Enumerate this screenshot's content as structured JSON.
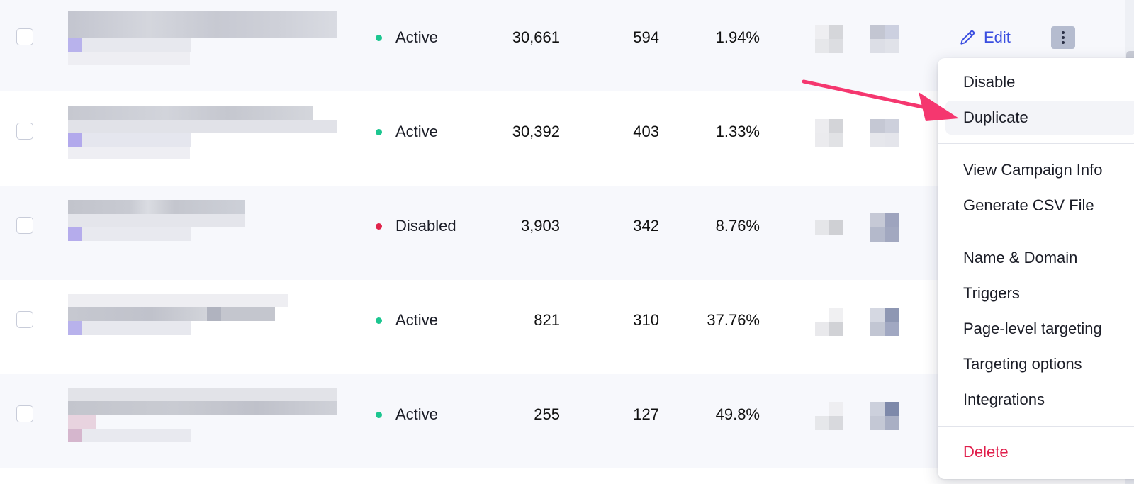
{
  "rows": [
    {
      "status": "Active",
      "status_color": "#1cc690",
      "impressions": "30,661",
      "conversions": "594",
      "rate": "1.94%"
    },
    {
      "status": "Active",
      "status_color": "#1cc690",
      "impressions": "30,392",
      "conversions": "403",
      "rate": "1.33%"
    },
    {
      "status": "Disabled",
      "status_color": "#e0244b",
      "impressions": "3,903",
      "conversions": "342",
      "rate": "8.76%"
    },
    {
      "status": "Active",
      "status_color": "#1cc690",
      "impressions": "821",
      "conversions": "310",
      "rate": "37.76%"
    },
    {
      "status": "Active",
      "status_color": "#1cc690",
      "impressions": "255",
      "conversions": "127",
      "rate": "49.8%"
    }
  ],
  "edit_label": "Edit",
  "menu": {
    "items": [
      "Disable",
      "Duplicate",
      "View Campaign Info",
      "Generate CSV File",
      "Name & Domain",
      "Triggers",
      "Page-level targeting",
      "Targeting options",
      "Integrations",
      "Delete"
    ]
  },
  "colors": {
    "accent": "#3a4ee0",
    "danger": "#e01e4b",
    "arrow": "#f5376f"
  }
}
